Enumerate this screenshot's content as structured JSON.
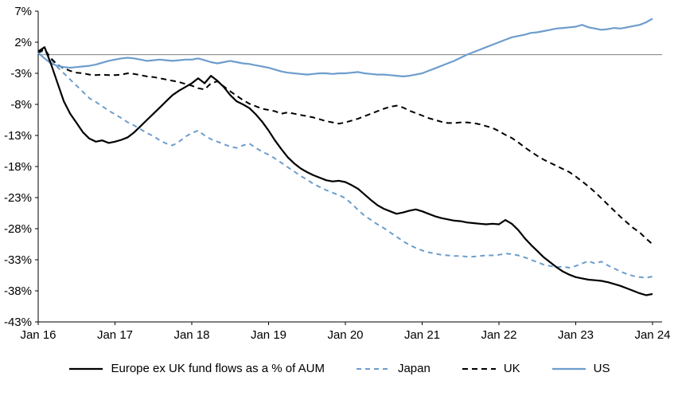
{
  "accent_colors": {
    "black": "#000000",
    "blue": "#6d9dcd",
    "zero_line": "#808080",
    "axis": "#000000"
  },
  "chart_data": {
    "type": "line",
    "title": "",
    "xlabel": "",
    "ylabel": "",
    "y_unit": "%",
    "ylim": [
      -43,
      7
    ],
    "grid": false,
    "zero_line": true,
    "legend_position": "bottom",
    "x_tick_labels": [
      "Jan 16",
      "Jan 17",
      "Jan 18",
      "Jan 19",
      "Jan 20",
      "Jan 21",
      "Jan 22",
      "Jan 23",
      "Jan 24"
    ],
    "x_tick_month_index": [
      0,
      12,
      24,
      36,
      48,
      60,
      72,
      84,
      96
    ],
    "y_ticks": [
      7,
      2,
      -3,
      -8,
      -13,
      -18,
      -23,
      -28,
      -33,
      -38,
      -43
    ],
    "y_tick_labels": [
      "7%",
      "2%",
      "-3%",
      "-8%",
      "-13%",
      "-18%",
      "-23%",
      "-28%",
      "-33%",
      "-38%",
      "-43%"
    ],
    "x_is_monthly_from": "Jan 16",
    "series": [
      {
        "id": "europe-ex-uk",
        "name": "Europe ex UK fund flows as a % of AUM",
        "color": "#000000",
        "dasharray": "",
        "width": 2.2,
        "values": [
          0.5,
          1.2,
          -1.5,
          -4.5,
          -7.5,
          -9.5,
          -11.0,
          -12.5,
          -13.5,
          -14.0,
          -13.8,
          -14.2,
          -14.0,
          -13.7,
          -13.3,
          -12.5,
          -11.5,
          -10.5,
          -9.5,
          -8.5,
          -7.5,
          -6.5,
          -5.8,
          -5.2,
          -4.6,
          -3.8,
          -4.6,
          -3.4,
          -4.2,
          -5.2,
          -6.5,
          -7.5,
          -8.0,
          -8.6,
          -9.6,
          -10.8,
          -12.2,
          -13.8,
          -15.2,
          -16.5,
          -17.5,
          -18.3,
          -18.9,
          -19.4,
          -19.8,
          -20.2,
          -20.4,
          -20.3,
          -20.5,
          -21.0,
          -21.6,
          -22.5,
          -23.4,
          -24.2,
          -24.8,
          -25.2,
          -25.6,
          -25.4,
          -25.1,
          -24.9,
          -25.2,
          -25.6,
          -26.0,
          -26.3,
          -26.5,
          -26.7,
          -26.8,
          -27.0,
          -27.1,
          -27.2,
          -27.3,
          -27.2,
          -27.3,
          -26.6,
          -27.2,
          -28.2,
          -29.5,
          -30.6,
          -31.6,
          -32.6,
          -33.4,
          -34.2,
          -34.9,
          -35.4,
          -35.8,
          -36.0,
          -36.2,
          -36.3,
          -36.4,
          -36.6,
          -36.9,
          -37.2,
          -37.6,
          -38.0,
          -38.4,
          -38.7,
          -38.5
        ]
      },
      {
        "id": "japan",
        "name": "Japan",
        "color": "#6d9dcd",
        "dasharray": "6 5",
        "width": 2,
        "values": [
          0.3,
          0.6,
          -0.8,
          -2.0,
          -3.0,
          -4.0,
          -5.0,
          -6.0,
          -7.0,
          -7.6,
          -8.3,
          -9.0,
          -9.6,
          -10.2,
          -10.9,
          -11.4,
          -12.0,
          -12.6,
          -13.1,
          -13.8,
          -14.3,
          -14.6,
          -14.0,
          -13.2,
          -12.6,
          -12.2,
          -13.0,
          -13.6,
          -14.0,
          -14.4,
          -14.8,
          -15.0,
          -14.6,
          -14.3,
          -15.0,
          -15.6,
          -16.1,
          -16.7,
          -17.4,
          -18.1,
          -18.8,
          -19.5,
          -20.1,
          -20.8,
          -21.3,
          -21.8,
          -22.2,
          -22.6,
          -23.1,
          -24.0,
          -25.0,
          -25.9,
          -26.6,
          -27.3,
          -27.9,
          -28.6,
          -29.3,
          -30.0,
          -30.6,
          -31.1,
          -31.5,
          -31.8,
          -32.0,
          -32.2,
          -32.3,
          -32.4,
          -32.4,
          -32.5,
          -32.5,
          -32.4,
          -32.3,
          -32.3,
          -32.2,
          -32.0,
          -32.1,
          -32.3,
          -32.6,
          -33.0,
          -33.4,
          -33.8,
          -34.0,
          -34.2,
          -34.1,
          -34.3,
          -34.0,
          -33.6,
          -33.2,
          -33.6,
          -33.3,
          -33.9,
          -34.4,
          -34.9,
          -35.3,
          -35.6,
          -35.8,
          -35.9,
          -35.7
        ]
      },
      {
        "id": "uk",
        "name": "UK",
        "color": "#000000",
        "dasharray": "7 5",
        "width": 2,
        "values": [
          0.3,
          0.9,
          -0.6,
          -1.6,
          -2.2,
          -2.6,
          -2.9,
          -3.0,
          -3.2,
          -3.3,
          -3.2,
          -3.3,
          -3.3,
          -3.2,
          -3.0,
          -3.1,
          -3.3,
          -3.5,
          -3.6,
          -3.8,
          -4.0,
          -4.2,
          -4.4,
          -4.7,
          -5.0,
          -5.4,
          -5.6,
          -4.6,
          -4.3,
          -5.1,
          -5.9,
          -6.6,
          -7.3,
          -7.9,
          -8.3,
          -8.7,
          -8.9,
          -9.1,
          -9.5,
          -9.3,
          -9.5,
          -9.7,
          -9.9,
          -10.1,
          -10.4,
          -10.7,
          -10.9,
          -11.1,
          -10.9,
          -10.6,
          -10.3,
          -9.9,
          -9.5,
          -9.1,
          -8.7,
          -8.4,
          -8.2,
          -8.5,
          -9.0,
          -9.4,
          -9.8,
          -10.2,
          -10.5,
          -10.8,
          -11.0,
          -11.0,
          -10.9,
          -10.9,
          -11.0,
          -11.2,
          -11.5,
          -11.8,
          -12.3,
          -12.9,
          -13.4,
          -14.1,
          -14.9,
          -15.6,
          -16.3,
          -16.9,
          -17.4,
          -17.9,
          -18.4,
          -18.9,
          -19.6,
          -20.4,
          -21.2,
          -22.1,
          -23.1,
          -24.1,
          -25.1,
          -26.1,
          -27.0,
          -27.9,
          -28.6,
          -29.6,
          -30.5
        ]
      },
      {
        "id": "us",
        "name": "US",
        "color": "#6d9dcd",
        "dasharray": "",
        "width": 2.2,
        "values": [
          0.3,
          -0.6,
          -1.4,
          -1.8,
          -2.0,
          -2.1,
          -2.0,
          -1.9,
          -1.8,
          -1.6,
          -1.3,
          -1.0,
          -0.8,
          -0.6,
          -0.5,
          -0.6,
          -0.8,
          -1.0,
          -0.9,
          -0.8,
          -0.9,
          -1.0,
          -0.9,
          -0.8,
          -0.8,
          -0.6,
          -0.9,
          -1.2,
          -1.4,
          -1.2,
          -1.0,
          -1.2,
          -1.4,
          -1.5,
          -1.7,
          -1.9,
          -2.1,
          -2.4,
          -2.7,
          -2.9,
          -3.0,
          -3.1,
          -3.2,
          -3.1,
          -3.0,
          -3.0,
          -3.1,
          -3.0,
          -3.0,
          -2.9,
          -2.8,
          -3.0,
          -3.1,
          -3.2,
          -3.2,
          -3.3,
          -3.4,
          -3.5,
          -3.4,
          -3.2,
          -3.0,
          -2.6,
          -2.2,
          -1.8,
          -1.4,
          -1.0,
          -0.5,
          0.0,
          0.4,
          0.8,
          1.2,
          1.6,
          2.0,
          2.4,
          2.8,
          3.0,
          3.2,
          3.5,
          3.6,
          3.8,
          4.0,
          4.2,
          4.3,
          4.4,
          4.5,
          4.8,
          4.4,
          4.2,
          4.0,
          4.1,
          4.3,
          4.2,
          4.4,
          4.6,
          4.8,
          5.2,
          5.8
        ]
      }
    ]
  }
}
